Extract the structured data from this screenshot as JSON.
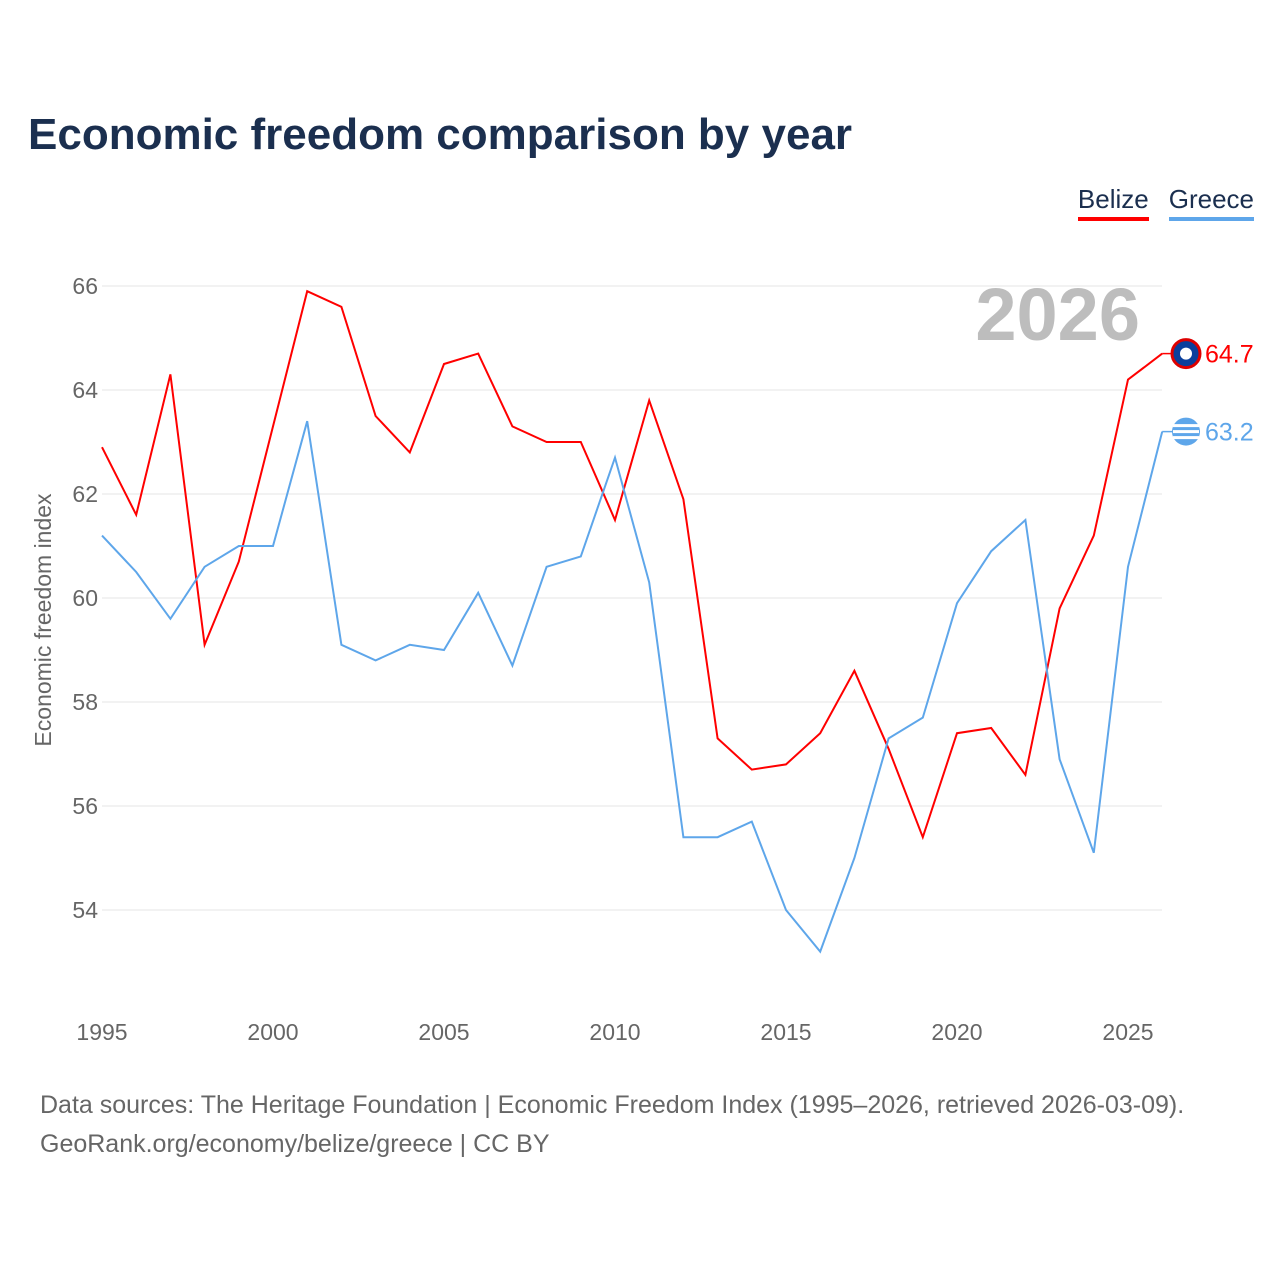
{
  "chart_data": {
    "type": "line",
    "title": "Economic freedom comparison by year",
    "xlabel": "",
    "ylabel": "Economic freedom index",
    "x": [
      1995,
      1996,
      1997,
      1998,
      1999,
      2000,
      2001,
      2002,
      2003,
      2004,
      2005,
      2006,
      2007,
      2008,
      2009,
      2010,
      2011,
      2012,
      2013,
      2014,
      2015,
      2016,
      2017,
      2018,
      2019,
      2020,
      2021,
      2022,
      2023,
      2024,
      2025,
      2026
    ],
    "xticks": [
      1995,
      2000,
      2005,
      2010,
      2015,
      2020,
      2025
    ],
    "yticks": [
      54,
      56,
      58,
      60,
      62,
      64,
      66
    ],
    "xlim": [
      1995,
      2026
    ],
    "ylim": [
      52.2,
      67
    ],
    "grid": true,
    "legend_position": "top-right",
    "year_label": "2026",
    "series": [
      {
        "name": "Belize",
        "color": "#ff0000",
        "end_label": "64.7",
        "values": [
          62.9,
          61.6,
          64.3,
          59.1,
          60.7,
          63.3,
          65.9,
          65.6,
          63.5,
          62.8,
          64.5,
          64.7,
          63.3,
          63.0,
          63.0,
          61.5,
          63.8,
          61.9,
          57.3,
          56.7,
          56.8,
          57.4,
          58.6,
          57.1,
          55.4,
          57.4,
          57.5,
          56.6,
          59.8,
          61.2,
          64.2,
          64.7
        ]
      },
      {
        "name": "Greece",
        "color": "#5ea6ea",
        "end_label": "63.2",
        "values": [
          61.2,
          60.5,
          59.6,
          60.6,
          61.0,
          61.0,
          63.4,
          59.1,
          58.8,
          59.1,
          59.0,
          60.1,
          58.7,
          60.6,
          60.8,
          62.7,
          60.3,
          55.4,
          55.4,
          55.7,
          54.0,
          53.2,
          55.0,
          57.3,
          57.7,
          59.9,
          60.9,
          61.5,
          56.9,
          55.1,
          60.6,
          63.2
        ]
      }
    ]
  },
  "footer": {
    "line1": "Data sources: The Heritage Foundation | Economic Freedom Index (1995–2026, retrieved 2026-03-09).",
    "line2": "GeoRank.org/economy/belize/greece | CC BY"
  }
}
